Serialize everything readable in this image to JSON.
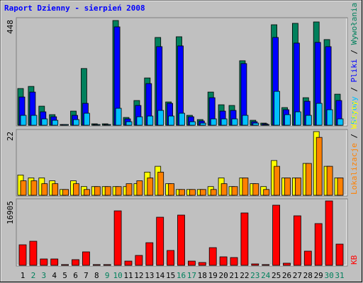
{
  "chart_data": [
    {
      "type": "bar",
      "title": "Raport Dzienny -  sierpień 2008",
      "legend_separator": " / ",
      "ylim": [
        0,
        448
      ],
      "yticks": [
        448
      ],
      "series": [
        {
          "name": "Wywołania",
          "color": "#00805c",
          "values": [
            156,
            165,
            81,
            45,
            3,
            60,
            241,
            6,
            6,
            445,
            33,
            105,
            201,
            373,
            99,
            376,
            42,
            24,
            141,
            87,
            84,
            274,
            21,
            9,
            427,
            75,
            433,
            117,
            439,
            364,
            132
          ]
        },
        {
          "name": "Pliki",
          "color": "#0000ff",
          "values": [
            120,
            141,
            57,
            36,
            3,
            42,
            93,
            3,
            3,
            418,
            27,
            84,
            177,
            334,
            93,
            337,
            36,
            18,
            117,
            60,
            63,
            262,
            15,
            6,
            373,
            66,
            349,
            102,
            352,
            334,
            105
          ]
        },
        {
          "name": "Strony",
          "color": "#00c0ff",
          "values": [
            42,
            42,
            27,
            21,
            3,
            24,
            51,
            3,
            3,
            72,
            15,
            36,
            39,
            63,
            39,
            51,
            15,
            9,
            27,
            27,
            27,
            42,
            9,
            3,
            144,
            45,
            57,
            42,
            93,
            66,
            27
          ]
        }
      ]
    },
    {
      "type": "bar",
      "legend_separator": " / ",
      "ylim": [
        0,
        22
      ],
      "yticks": [
        22
      ],
      "series": [
        {
          "name": "Wizyty",
          "color": "#ffff00",
          "values": [
            7,
            6,
            6,
            5,
            2,
            5,
            3,
            3,
            3,
            3,
            3,
            4,
            8,
            10,
            4,
            2,
            2,
            2,
            3,
            6,
            3,
            6,
            4,
            3,
            12,
            6,
            6,
            11,
            22,
            10,
            6
          ]
        },
        {
          "name": "Lokalizacje",
          "color": "#ff8000",
          "values": [
            5,
            5,
            4,
            4,
            2,
            4,
            2,
            3,
            3,
            3,
            4,
            5,
            6,
            8,
            4,
            2,
            2,
            2,
            2,
            4,
            3,
            6,
            4,
            2,
            10,
            6,
            6,
            11,
            20,
            10,
            6
          ]
        }
      ]
    },
    {
      "type": "bar",
      "ylim": [
        0,
        16905
      ],
      "yticks": [
        16905
      ],
      "series": [
        {
          "name": "KB",
          "color": "#ff0000",
          "values": [
            5390,
            6320,
            1670,
            1670,
            190,
            1490,
            3530,
            190,
            190,
            14300,
            1110,
            2600,
            5940,
            12630,
            3900,
            13190,
            1110,
            740,
            4640,
            2230,
            2040,
            13750,
            370,
            190,
            15790,
            560,
            13000,
            3720,
            10960,
            16905,
            5570
          ]
        }
      ],
      "categories": [
        "1",
        "2",
        "3",
        "4",
        "5",
        "6",
        "7",
        "8",
        "9",
        "10",
        "11",
        "12",
        "13",
        "14",
        "15",
        "16",
        "17",
        "18",
        "19",
        "20",
        "21",
        "22",
        "23",
        "24",
        "25",
        "26",
        "27",
        "28",
        "29",
        "30",
        "31"
      ],
      "category_colors": [
        "#000000",
        "#00805c",
        "#00805c",
        "#000000",
        "#000000",
        "#000000",
        "#000000",
        "#000000",
        "#00805c",
        "#00805c",
        "#000000",
        "#000000",
        "#000000",
        "#000000",
        "#000000",
        "#00805c",
        "#00805c",
        "#000000",
        "#000000",
        "#000000",
        "#000000",
        "#000000",
        "#00805c",
        "#00805c",
        "#000000",
        "#000000",
        "#000000",
        "#000000",
        "#000000",
        "#00805c",
        "#00805c"
      ]
    }
  ]
}
